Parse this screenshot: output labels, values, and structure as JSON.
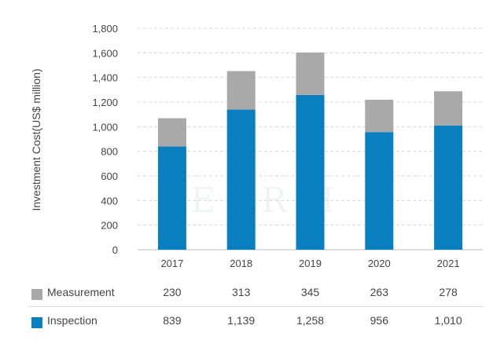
{
  "chart_data": {
    "type": "bar",
    "stacked": true,
    "categories": [
      "2017",
      "2018",
      "2019",
      "2020",
      "2021"
    ],
    "series": [
      {
        "name": "Inspection",
        "values": [
          839,
          1139,
          1258,
          956,
          1010
        ],
        "color": "#0a7fbf"
      },
      {
        "name": "Measurement",
        "values": [
          230,
          313,
          345,
          263,
          278
        ],
        "color": "#a9a9a9"
      }
    ],
    "ylabel": "Investment Cost(US$ million)",
    "ylim": [
      0,
      1800
    ],
    "yticks": [
      "0",
      "200",
      "400",
      "600",
      "800",
      "1,000",
      "1,200",
      "1,400",
      "1,600",
      "1,800"
    ],
    "grid": true,
    "table": {
      "rows": [
        {
          "label": "Measurement",
          "color": "#a9a9a9",
          "values": [
            "230",
            "313",
            "345",
            "263",
            "278"
          ]
        },
        {
          "label": "Inspection",
          "color": "#0a7fbf",
          "values": [
            "839",
            "1,139",
            "1,258",
            "956",
            "1,010"
          ]
        }
      ]
    }
  }
}
